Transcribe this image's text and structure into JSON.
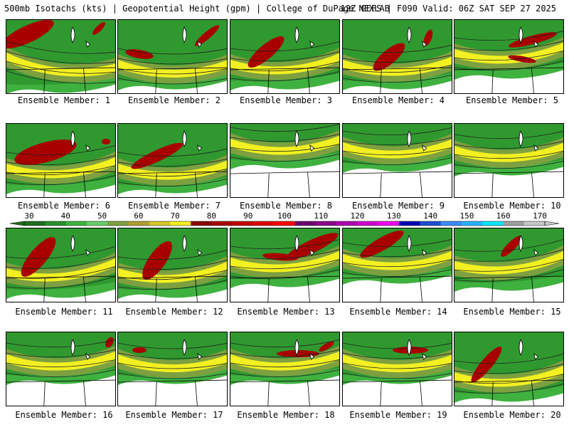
{
  "header": {
    "left": "500mb Isotachs (kts) | Geopotential Height (gpm) | College of DuPage NEXLAB",
    "right": "12Z GEFS | F090 Valid: 06Z SAT SEP 27 2025"
  },
  "colors": {
    "land": "#ffffff",
    "border": "#000000",
    "contour": "#222222"
  },
  "legend": {
    "ticks": [
      "30",
      "40",
      "50",
      "60",
      "70",
      "80",
      "90",
      "100",
      "110",
      "120",
      "130",
      "140",
      "150",
      "160",
      "170"
    ],
    "colors": [
      "#1e6e1e",
      "#2a8f2a",
      "#3fb13f",
      "#66d066",
      "#7ea040",
      "#b0a030",
      "#d6c82a",
      "#f2f020",
      "#8b0000",
      "#a80000",
      "#c40000",
      "#e10000",
      "#ff0000",
      "#6e006e",
      "#8b008b",
      "#b000b0",
      "#d000d0",
      "#f000f0",
      "#0000b0",
      "#1e50d0",
      "#3c8cff",
      "#28b4ff",
      "#00e6ff",
      "#a0a0a0",
      "#c8c8c8"
    ]
  },
  "panels": [
    {
      "label": "Ensemble Member: 1"
    },
    {
      "label": "Ensemble Member: 2"
    },
    {
      "label": "Ensemble Member: 3"
    },
    {
      "label": "Ensemble Member: 4"
    },
    {
      "label": "Ensemble Member: 5"
    },
    {
      "label": "Ensemble Member: 6"
    },
    {
      "label": "Ensemble Member: 7"
    },
    {
      "label": "Ensemble Member: 8"
    },
    {
      "label": "Ensemble Member: 9"
    },
    {
      "label": "Ensemble Member: 10"
    },
    {
      "label": "Ensemble Member: 11"
    },
    {
      "label": "Ensemble Member: 12"
    },
    {
      "label": "Ensemble Member: 13"
    },
    {
      "label": "Ensemble Member: 14"
    },
    {
      "label": "Ensemble Member: 15"
    },
    {
      "label": "Ensemble Member: 16"
    },
    {
      "label": "Ensemble Member: 17"
    },
    {
      "label": "Ensemble Member: 18"
    },
    {
      "label": "Ensemble Member: 19"
    },
    {
      "label": "Ensemble Member: 20"
    }
  ]
}
